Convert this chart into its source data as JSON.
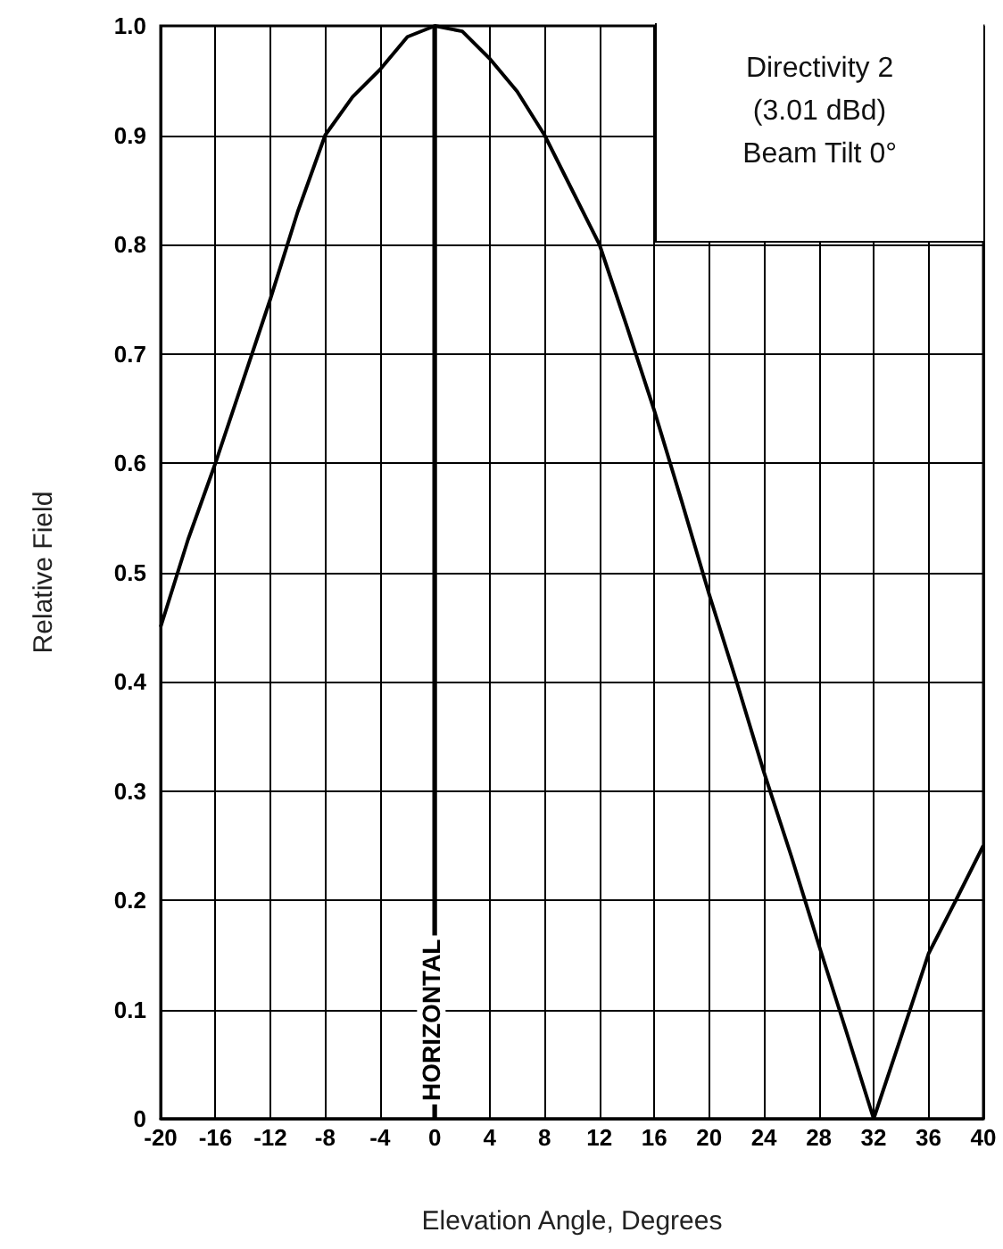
{
  "chart_data": {
    "type": "line",
    "xlabel": "Elevation Angle, Degrees",
    "ylabel": "Relative Field",
    "annotations": [
      "Directivity 2",
      "(3.01 dBd)",
      "Beam Tilt 0°"
    ],
    "xlim": [
      -20,
      40
    ],
    "xticks": [
      -20,
      -16,
      -12,
      -8,
      -4,
      0,
      4,
      8,
      12,
      16,
      20,
      24,
      28,
      32,
      36,
      40
    ],
    "ylim": [
      0,
      1
    ],
    "yticks": [
      0,
      0.1,
      0.2,
      0.3,
      0.4,
      0.5,
      0.6,
      0.7,
      0.8,
      0.9,
      {
        "value": 1,
        "label": "1.0"
      }
    ],
    "grid": true,
    "marker": "none",
    "line_style": "solid",
    "ref_lines": [
      {
        "axis": "x",
        "value": 0,
        "label": "HORIZONTAL",
        "color": "#000000"
      }
    ],
    "series": [
      {
        "color": "#000000",
        "x": [
          -20,
          -18,
          -16,
          -14,
          -12,
          -10,
          -8,
          -6,
          -4,
          -2,
          0,
          2,
          4,
          6,
          8,
          10,
          12,
          14,
          16,
          18,
          20,
          22,
          24,
          26,
          28,
          30,
          32,
          34,
          36,
          38,
          40
        ],
        "values": [
          0.45,
          0.53,
          0.6,
          0.675,
          0.75,
          0.83,
          0.9,
          0.935,
          0.96,
          0.99,
          1,
          0.995,
          0.97,
          0.94,
          0.9,
          0.85,
          0.8,
          0.725,
          0.648,
          0.565,
          0.48,
          0.4,
          0.317,
          0.24,
          0.159,
          0.08,
          0,
          0.075,
          0.151,
          0.2,
          0.25
        ]
      }
    ]
  }
}
